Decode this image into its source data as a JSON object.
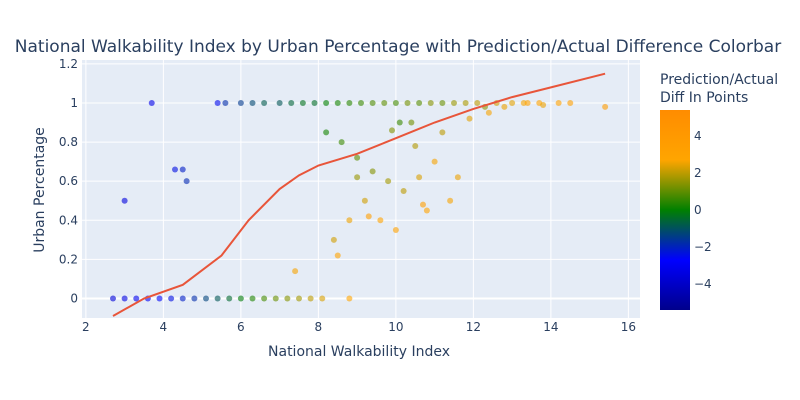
{
  "colors": {
    "plot_bg": "#e5ecf6",
    "grid": "#ffffff",
    "text": "#2a3f5f",
    "trend_line": "#e8553a",
    "colorscale": [
      "#00008b",
      "#0000ff",
      "#008000",
      "#ffa500",
      "#ff8c00"
    ]
  },
  "chart_data": {
    "type": "scatter",
    "title": "National Walkability Index by Urban Percentage with Prediction/Actual Difference Colorbar",
    "xlabel": "National Walkability Index",
    "ylabel": "Urban Percentage",
    "xlim": [
      1.9,
      16.3
    ],
    "ylim": [
      -0.1,
      1.22
    ],
    "x_ticks": [
      2,
      4,
      6,
      8,
      10,
      12,
      14,
      16
    ],
    "y_ticks": [
      0,
      0.2,
      0.4,
      0.6,
      0.8,
      1,
      1.2
    ],
    "grid": true,
    "colorbar": {
      "title": [
        "Prediction/Actual",
        "Diff In Points"
      ],
      "range": [
        -5.4,
        5.4
      ],
      "ticks": [
        -4,
        -2,
        0,
        2,
        4
      ]
    },
    "trend_line": {
      "x": [
        2.7,
        3.5,
        4.5,
        5.5,
        6.2,
        7.0,
        7.5,
        8.0,
        9.0,
        10.0,
        11.0,
        12.0,
        13.0,
        14.0,
        15.4
      ],
      "y": [
        -0.09,
        0.0,
        0.07,
        0.22,
        0.4,
        0.56,
        0.63,
        0.68,
        0.74,
        0.82,
        0.9,
        0.97,
        1.03,
        1.08,
        1.15
      ]
    },
    "series": [
      {
        "points": [
          [
            3.7,
            1.0,
            -3.2
          ],
          [
            5.4,
            1.0,
            -2.5
          ],
          [
            5.6,
            1.0,
            -1.8
          ],
          [
            6.0,
            1.0,
            -1.5
          ],
          [
            6.3,
            1.0,
            -1.2
          ],
          [
            6.6,
            1.0,
            -0.8
          ],
          [
            7.0,
            1.0,
            -0.9
          ],
          [
            7.3,
            1.0,
            -0.6
          ],
          [
            7.6,
            1.0,
            -0.3
          ],
          [
            7.9,
            1.0,
            -0.4
          ],
          [
            8.2,
            1.0,
            0.0
          ],
          [
            8.5,
            1.0,
            0.2
          ],
          [
            8.8,
            1.0,
            0.4
          ],
          [
            9.1,
            1.0,
            0.6
          ],
          [
            9.4,
            1.0,
            0.8
          ],
          [
            9.7,
            1.0,
            1.0
          ],
          [
            10.0,
            1.0,
            0.7
          ],
          [
            10.3,
            1.0,
            1.2
          ],
          [
            10.6,
            1.0,
            0.9
          ],
          [
            10.9,
            1.0,
            1.4
          ],
          [
            11.2,
            1.0,
            1.1
          ],
          [
            11.5,
            1.0,
            1.6
          ],
          [
            11.8,
            1.0,
            1.8
          ],
          [
            12.1,
            1.0,
            2.0
          ],
          [
            12.6,
            1.0,
            2.2
          ],
          [
            13.0,
            1.0,
            2.4
          ],
          [
            13.3,
            1.0,
            2.6
          ],
          [
            13.7,
            1.0,
            2.8
          ],
          [
            14.2,
            1.0,
            3.0
          ],
          [
            14.5,
            1.0,
            3.2
          ],
          [
            15.4,
            0.98,
            3.6
          ],
          [
            12.3,
            0.98,
            1.5
          ],
          [
            13.8,
            0.99,
            2.5
          ],
          [
            2.7,
            0.0,
            -3.6
          ],
          [
            3.0,
            0.0,
            -3.4
          ],
          [
            3.3,
            0.0,
            -3.1
          ],
          [
            3.6,
            0.0,
            -2.9
          ],
          [
            3.9,
            0.0,
            -2.6
          ],
          [
            4.2,
            0.0,
            -2.4
          ],
          [
            4.5,
            0.0,
            -2.1
          ],
          [
            4.8,
            0.0,
            -1.8
          ],
          [
            5.1,
            0.0,
            -1.3
          ],
          [
            5.4,
            0.0,
            -0.9
          ],
          [
            5.7,
            0.0,
            -0.5
          ],
          [
            6.0,
            0.0,
            -0.1
          ],
          [
            6.3,
            0.0,
            0.3
          ],
          [
            6.6,
            0.0,
            0.7
          ],
          [
            6.9,
            0.0,
            1.1
          ],
          [
            7.2,
            0.0,
            1.4
          ],
          [
            7.5,
            0.0,
            1.7
          ],
          [
            7.8,
            0.0,
            2.0
          ],
          [
            8.1,
            0.0,
            2.3
          ],
          [
            8.8,
            0.0,
            2.7
          ],
          [
            3.0,
            0.5,
            -3.5
          ],
          [
            4.3,
            0.66,
            -2.4
          ],
          [
            4.5,
            0.66,
            -2.1
          ],
          [
            4.6,
            0.6,
            -1.9
          ],
          [
            8.2,
            0.85,
            0.2
          ],
          [
            8.6,
            0.8,
            0.6
          ],
          [
            9.0,
            0.72,
            1.0
          ],
          [
            9.4,
            0.65,
            1.4
          ],
          [
            9.8,
            0.6,
            1.7
          ],
          [
            10.2,
            0.55,
            2.0
          ],
          [
            10.6,
            0.62,
            2.3
          ],
          [
            11.0,
            0.7,
            2.6
          ],
          [
            11.4,
            0.5,
            2.6
          ],
          [
            10.8,
            0.45,
            2.9
          ],
          [
            9.2,
            0.5,
            2.2
          ],
          [
            8.8,
            0.4,
            2.5
          ],
          [
            9.6,
            0.4,
            2.8
          ],
          [
            10.0,
            0.35,
            3.1
          ],
          [
            8.4,
            0.3,
            2.2
          ],
          [
            9.0,
            0.62,
            1.6
          ],
          [
            11.9,
            0.92,
            2.4
          ],
          [
            12.4,
            0.95,
            2.6
          ],
          [
            13.4,
            1.0,
            3.0
          ],
          [
            11.2,
            0.85,
            2.0
          ],
          [
            10.5,
            0.78,
            1.9
          ],
          [
            9.9,
            0.86,
            1.4
          ],
          [
            10.4,
            0.9,
            1.2
          ],
          [
            12.8,
            0.98,
            2.5
          ],
          [
            11.6,
            0.62,
            2.5
          ],
          [
            10.7,
            0.48,
            3.4
          ],
          [
            9.3,
            0.42,
            3.3
          ],
          [
            8.5,
            0.22,
            2.9
          ],
          [
            7.4,
            0.14,
            2.6
          ],
          [
            10.1,
            0.9,
            0.6
          ]
        ]
      }
    ]
  }
}
